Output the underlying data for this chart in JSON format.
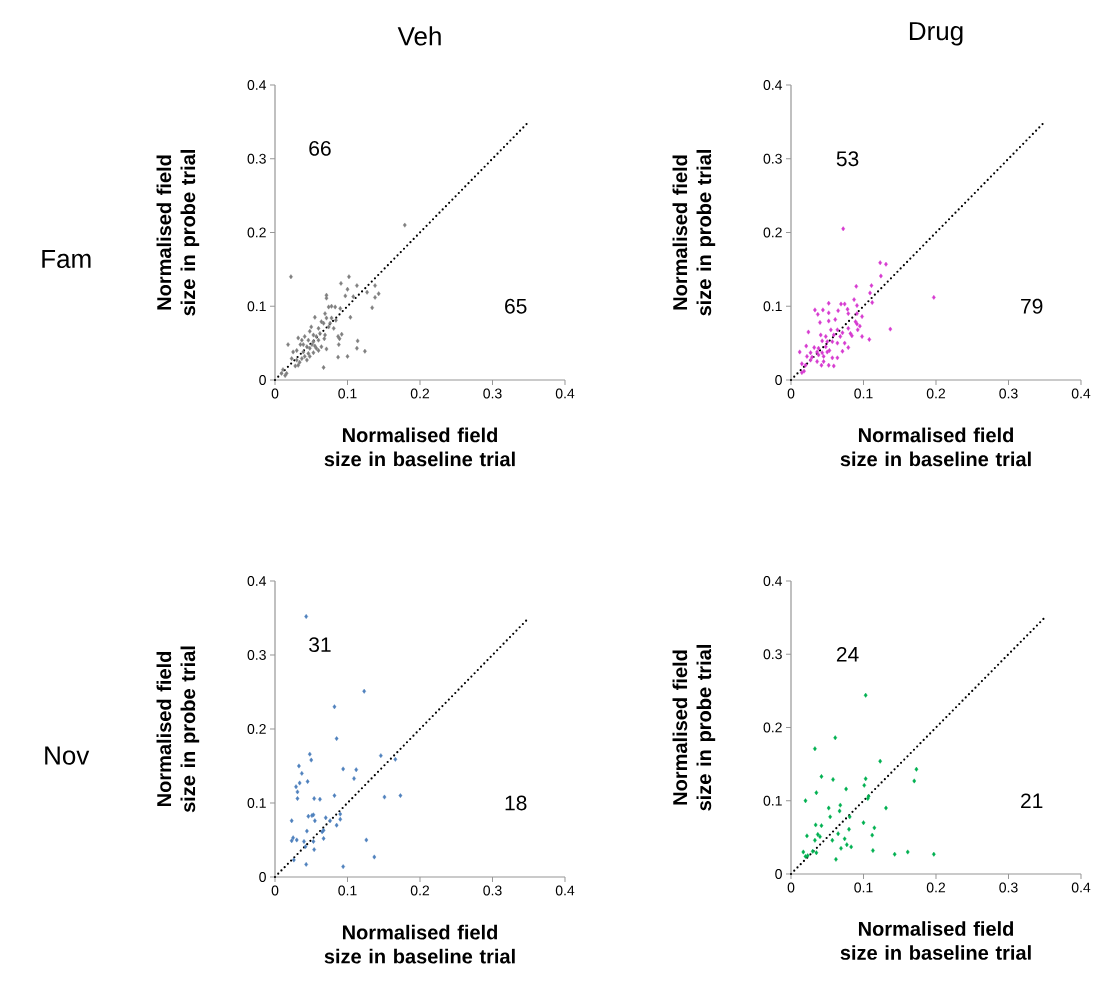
{
  "chart_data": [
    {
      "type": "scatter",
      "title": "Veh",
      "xlabel": "Normalised field size in baseline trial",
      "ylabel": "Normalised field size in probe trial",
      "xlim": [
        0,
        0.4
      ],
      "ylim": [
        0,
        0.4
      ],
      "xticks": [
        0,
        0.1,
        0.2,
        0.3,
        0.4
      ],
      "yticks": [
        0,
        0.1,
        0.2,
        0.3,
        0.4
      ],
      "marker": "diamond",
      "annotations": [
        "Fam",
        "66",
        "65"
      ],
      "series": [
        {
          "color": "#7f7f7f",
          "x": [
            0.179,
            0.022,
            0.102,
            0.091,
            0.1,
            0.113,
            0.127,
            0.138,
            0.143,
            0.138,
            0.071,
            0.071,
            0.097,
            0.108,
            0.134,
            0.074,
            0.078,
            0.083,
            0.09,
            0.069,
            0.055,
            0.071,
            0.078,
            0.084,
            0.104,
            0.067,
            0.05,
            0.06,
            0.074,
            0.081,
            0.092,
            0.087,
            0.048,
            0.041,
            0.053,
            0.057,
            0.062,
            0.069,
            0.032,
            0.037,
            0.046,
            0.053,
            0.06,
            0.068,
            0.089,
            0.114,
            0.088,
            0.018,
            0.035,
            0.044,
            0.051,
            0.057,
            0.064,
            0.113,
            0.124,
            0.025,
            0.03,
            0.039,
            0.046,
            0.053,
            0.06,
            0.087,
            0.1,
            0.023,
            0.03,
            0.037,
            0.044,
            0.048,
            0.032,
            0.028,
            0.067,
            0.011,
            0.016,
            0.009,
            0.014,
            0.034,
            0.041,
            0.048,
            0.039,
            0.055,
            0.071,
            0.076,
            0.064
          ],
          "values": [
            0.21,
            0.14,
            0.14,
            0.131,
            0.123,
            0.128,
            0.119,
            0.128,
            0.117,
            0.112,
            0.115,
            0.111,
            0.114,
            0.113,
            0.098,
            0.099,
            0.1,
            0.099,
            0.097,
            0.09,
            0.085,
            0.084,
            0.084,
            0.081,
            0.085,
            0.077,
            0.072,
            0.07,
            0.072,
            0.07,
            0.062,
            0.059,
            0.066,
            0.059,
            0.061,
            0.059,
            0.063,
            0.061,
            0.057,
            0.054,
            0.054,
            0.052,
            0.054,
            0.056,
            0.056,
            0.053,
            0.048,
            0.048,
            0.048,
            0.045,
            0.048,
            0.043,
            0.045,
            0.043,
            0.039,
            0.038,
            0.04,
            0.038,
            0.036,
            0.037,
            0.04,
            0.031,
            0.032,
            0.029,
            0.027,
            0.029,
            0.027,
            0.032,
            0.02,
            0.019,
            0.017,
            0.014,
            0.009,
            0.009,
            0.006,
            0.024,
            0.032,
            0.043,
            0.048,
            0.046,
            0.042,
            0.077,
            0.079
          ]
        },
        {
          "type": "line",
          "color": "#000000",
          "line_style": "dotted",
          "marker": "none",
          "x": [
            0,
            0.35
          ],
          "values": [
            0,
            0.35
          ]
        }
      ]
    },
    {
      "type": "scatter",
      "title": "Drug",
      "xlabel": "Normalised field size in baseline trial",
      "ylabel": "Normalised field size in probe trial",
      "xlim": [
        0,
        0.4
      ],
      "ylim": [
        0,
        0.4
      ],
      "xticks": [
        0,
        0.1,
        0.2,
        0.3,
        0.4
      ],
      "yticks": [
        0,
        0.1,
        0.2,
        0.3,
        0.4
      ],
      "marker": "diamond",
      "annotations": [
        "53",
        "79"
      ],
      "series": [
        {
          "color": "#d63bd0",
          "x": [
            0.072,
            0.123,
            0.131,
            0.124,
            0.197,
            0.09,
            0.111,
            0.109,
            0.112,
            0.087,
            0.052,
            0.069,
            0.074,
            0.033,
            0.044,
            0.037,
            0.052,
            0.065,
            0.078,
            0.091,
            0.079,
            0.091,
            0.098,
            0.04,
            0.052,
            0.061,
            0.089,
            0.091,
            0.095,
            0.024,
            0.137,
            0.055,
            0.064,
            0.071,
            0.079,
            0.082,
            0.092,
            0.041,
            0.048,
            0.059,
            0.068,
            0.084,
            0.098,
            0.108,
            0.043,
            0.05,
            0.057,
            0.064,
            0.074,
            0.021,
            0.032,
            0.038,
            0.048,
            0.079,
            0.012,
            0.027,
            0.036,
            0.043,
            0.05,
            0.053,
            0.071,
            0.022,
            0.029,
            0.038,
            0.045,
            0.057,
            0.064,
            0.036,
            0.045,
            0.015,
            0.02,
            0.042,
            0.052,
            0.059,
            0.015,
            0.018,
            0.027
          ],
          "values": [
            0.205,
            0.159,
            0.157,
            0.141,
            0.112,
            0.127,
            0.128,
            0.118,
            0.105,
            0.109,
            0.104,
            0.103,
            0.103,
            0.095,
            0.095,
            0.089,
            0.091,
            0.094,
            0.096,
            0.101,
            0.09,
            0.09,
            0.086,
            0.078,
            0.08,
            0.082,
            0.079,
            0.076,
            0.073,
            0.065,
            0.069,
            0.068,
            0.068,
            0.064,
            0.07,
            0.063,
            0.068,
            0.061,
            0.059,
            0.061,
            0.059,
            0.06,
            0.059,
            0.055,
            0.053,
            0.052,
            0.052,
            0.05,
            0.05,
            0.046,
            0.044,
            0.043,
            0.045,
            0.044,
            0.038,
            0.037,
            0.038,
            0.037,
            0.038,
            0.04,
            0.039,
            0.032,
            0.031,
            0.034,
            0.032,
            0.03,
            0.03,
            0.025,
            0.025,
            0.022,
            0.02,
            0.02,
            0.02,
            0.019,
            0.01,
            0.012,
            0.027
          ]
        },
        {
          "type": "line",
          "color": "#000000",
          "line_style": "dotted",
          "marker": "none",
          "x": [
            0,
            0.35
          ],
          "values": [
            0,
            0.35
          ]
        }
      ]
    },
    {
      "type": "scatter",
      "xlabel": "Normalised field size in baseline trial",
      "ylabel": "Normalised field size in probe trial",
      "xlim": [
        0,
        0.4
      ],
      "ylim": [
        0,
        0.4
      ],
      "xticks": [
        0,
        0.1,
        0.2,
        0.3,
        0.4
      ],
      "yticks": [
        0,
        0.1,
        0.2,
        0.3,
        0.4
      ],
      "marker": "diamond",
      "annotations": [
        "Nov",
        "31",
        "18"
      ],
      "series": [
        {
          "color": "#4f81bd",
          "x": [
            0.043,
            0.123,
            0.082,
            0.085,
            0.048,
            0.05,
            0.146,
            0.166,
            0.033,
            0.037,
            0.029,
            0.034,
            0.031,
            0.031,
            0.045,
            0.094,
            0.112,
            0.109,
            0.054,
            0.062,
            0.082,
            0.151,
            0.173,
            0.023,
            0.046,
            0.051,
            0.053,
            0.055,
            0.07,
            0.076,
            0.09,
            0.09,
            0.085,
            0.067,
            0.065,
            0.044,
            0.023,
            0.025,
            0.03,
            0.04,
            0.053,
            0.067,
            0.042,
            0.054,
            0.026,
            0.043,
            0.126,
            0.137,
            0.094
          ],
          "values": [
            0.352,
            0.251,
            0.23,
            0.187,
            0.166,
            0.158,
            0.164,
            0.159,
            0.15,
            0.14,
            0.122,
            0.127,
            0.115,
            0.106,
            0.129,
            0.146,
            0.145,
            0.133,
            0.106,
            0.105,
            0.11,
            0.108,
            0.11,
            0.076,
            0.082,
            0.083,
            0.084,
            0.076,
            0.08,
            0.076,
            0.085,
            0.078,
            0.07,
            0.063,
            0.061,
            0.062,
            0.049,
            0.053,
            0.05,
            0.048,
            0.048,
            0.052,
            0.041,
            0.037,
            0.023,
            0.017,
            0.05,
            0.027,
            0.014
          ]
        },
        {
          "type": "line",
          "color": "#000000",
          "line_style": "dotted",
          "marker": "none",
          "x": [
            0,
            0.35
          ],
          "values": [
            0,
            0.35
          ]
        }
      ]
    },
    {
      "type": "scatter",
      "xlabel": "Normalised field size in baseline trial",
      "ylabel": "Normalised field size in probe trial",
      "xlim": [
        0,
        0.4
      ],
      "ylim": [
        0,
        0.4
      ],
      "xticks": [
        0,
        0.1,
        0.2,
        0.3,
        0.4
      ],
      "yticks": [
        0,
        0.1,
        0.2,
        0.3,
        0.4
      ],
      "marker": "diamond",
      "annotations": [
        "24",
        "21"
      ],
      "series": [
        {
          "color": "#00b050",
          "x": [
            0.103,
            0.061,
            0.033,
            0.123,
            0.173,
            0.17,
            0.042,
            0.058,
            0.103,
            0.101,
            0.035,
            0.076,
            0.02,
            0.106,
            0.107,
            0.068,
            0.052,
            0.067,
            0.131,
            0.054,
            0.081,
            0.034,
            0.042,
            0.1,
            0.08,
            0.115,
            0.022,
            0.037,
            0.04,
            0.065,
            0.112,
            0.033,
            0.057,
            0.074,
            0.017,
            0.03,
            0.035,
            0.077,
            0.083,
            0.069,
            0.02,
            0.023,
            0.113,
            0.143,
            0.161,
            0.197,
            0.062
          ],
          "values": [
            0.244,
            0.186,
            0.171,
            0.154,
            0.143,
            0.127,
            0.133,
            0.129,
            0.13,
            0.121,
            0.111,
            0.116,
            0.1,
            0.103,
            0.106,
            0.094,
            0.09,
            0.086,
            0.09,
            0.078,
            0.078,
            0.067,
            0.066,
            0.07,
            0.061,
            0.063,
            0.052,
            0.054,
            0.051,
            0.055,
            0.053,
            0.046,
            0.046,
            0.048,
            0.03,
            0.031,
            0.029,
            0.04,
            0.037,
            0.035,
            0.024,
            0.025,
            0.032,
            0.027,
            0.03,
            0.027,
            0.02
          ]
        },
        {
          "type": "line",
          "color": "#000000",
          "line_style": "dotted",
          "marker": "none",
          "x": [
            0,
            0.35
          ],
          "values": [
            0,
            0.35
          ]
        }
      ]
    }
  ]
}
